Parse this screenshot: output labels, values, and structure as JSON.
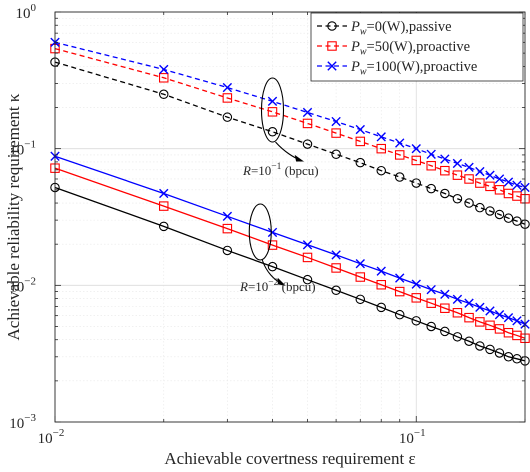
{
  "chart_data": {
    "type": "line",
    "xlabel": "Achievable covertness requirement ε",
    "ylabel": "Achievable reliability requirement κ",
    "x_scale": "log",
    "y_scale": "log",
    "xlim": [
      0.01,
      0.2
    ],
    "ylim": [
      0.001,
      1
    ],
    "x_ticks": [
      {
        "value": 0.01,
        "base": "10",
        "exp": "−2"
      },
      {
        "value": 0.1,
        "base": "10",
        "exp": "−1"
      }
    ],
    "y_ticks": [
      {
        "value": 0.001,
        "base": "10",
        "exp": "−3"
      },
      {
        "value": 0.01,
        "base": "10",
        "exp": "−2"
      },
      {
        "value": 0.1,
        "base": "10",
        "exp": "−1"
      },
      {
        "value": 1,
        "base": "10",
        "exp": "0"
      }
    ],
    "grid": true,
    "legend_position": "top-right",
    "legend": [
      {
        "label_prefix": "P",
        "label_sub": "w",
        "label_suffix": "=0(W),passive",
        "color": "#000000",
        "marker": "circle"
      },
      {
        "label_prefix": "P",
        "label_sub": "w",
        "label_suffix": "=50(W),proactive",
        "color": "#ff0000",
        "marker": "square"
      },
      {
        "label_prefix": "P",
        "label_sub": "w",
        "label_suffix": "=100(W),proactive",
        "color": "#0000ff",
        "marker": "x"
      }
    ],
    "annotations": [
      {
        "label_var": "R",
        "label_mid": "=10",
        "label_exp": "−1",
        "label_unit": " (bpcu)"
      },
      {
        "label_var": "R",
        "label_mid": "=10",
        "label_exp": "−2",
        "label_unit": " (bpcu)"
      }
    ],
    "x": [
      0.01,
      0.02,
      0.03,
      0.04,
      0.05,
      0.06,
      0.07,
      0.08,
      0.09,
      0.1,
      0.11,
      0.12,
      0.13,
      0.14,
      0.15,
      0.16,
      0.17,
      0.18,
      0.19,
      0.2
    ],
    "series": [
      {
        "group": "R=10^-1",
        "style": "dashed",
        "color": "#000000",
        "marker": "circle",
        "values": [
          0.43,
          0.25,
          0.17,
          0.133,
          0.108,
          0.091,
          0.079,
          0.069,
          0.062,
          0.056,
          0.051,
          0.047,
          0.043,
          0.04,
          0.037,
          0.035,
          0.033,
          0.031,
          0.0295,
          0.028
        ]
      },
      {
        "group": "R=10^-1",
        "style": "dashed",
        "color": "#ff0000",
        "marker": "square",
        "values": [
          0.54,
          0.33,
          0.235,
          0.186,
          0.153,
          0.13,
          0.113,
          0.1,
          0.09,
          0.082,
          0.075,
          0.069,
          0.064,
          0.06,
          0.056,
          0.053,
          0.05,
          0.047,
          0.045,
          0.043
        ]
      },
      {
        "group": "R=10^-1",
        "style": "dashed",
        "color": "#0000ff",
        "marker": "x",
        "values": [
          0.6,
          0.38,
          0.28,
          0.222,
          0.184,
          0.158,
          0.138,
          0.122,
          0.11,
          0.1,
          0.091,
          0.084,
          0.078,
          0.073,
          0.068,
          0.064,
          0.06,
          0.057,
          0.054,
          0.052
        ]
      },
      {
        "group": "R=10^-2",
        "style": "solid",
        "color": "#000000",
        "marker": "circle",
        "values": [
          0.052,
          0.027,
          0.018,
          0.0137,
          0.011,
          0.0092,
          0.0079,
          0.0069,
          0.0061,
          0.0055,
          0.005,
          0.0046,
          0.0042,
          0.0039,
          0.0036,
          0.0034,
          0.0032,
          0.003,
          0.0029,
          0.0028
        ]
      },
      {
        "group": "R=10^-2",
        "style": "solid",
        "color": "#ff0000",
        "marker": "square",
        "values": [
          0.072,
          0.038,
          0.026,
          0.0197,
          0.016,
          0.0134,
          0.0115,
          0.0101,
          0.009,
          0.0081,
          0.0074,
          0.0068,
          0.0063,
          0.0058,
          0.0054,
          0.0051,
          0.0048,
          0.0045,
          0.0043,
          0.0041
        ]
      },
      {
        "group": "R=10^-2",
        "style": "solid",
        "color": "#0000ff",
        "marker": "x",
        "values": [
          0.088,
          0.047,
          0.032,
          0.0244,
          0.0198,
          0.0167,
          0.0144,
          0.0127,
          0.0113,
          0.0102,
          0.0093,
          0.0086,
          0.0079,
          0.0074,
          0.0069,
          0.0065,
          0.0061,
          0.0058,
          0.0055,
          0.0052
        ]
      }
    ]
  }
}
